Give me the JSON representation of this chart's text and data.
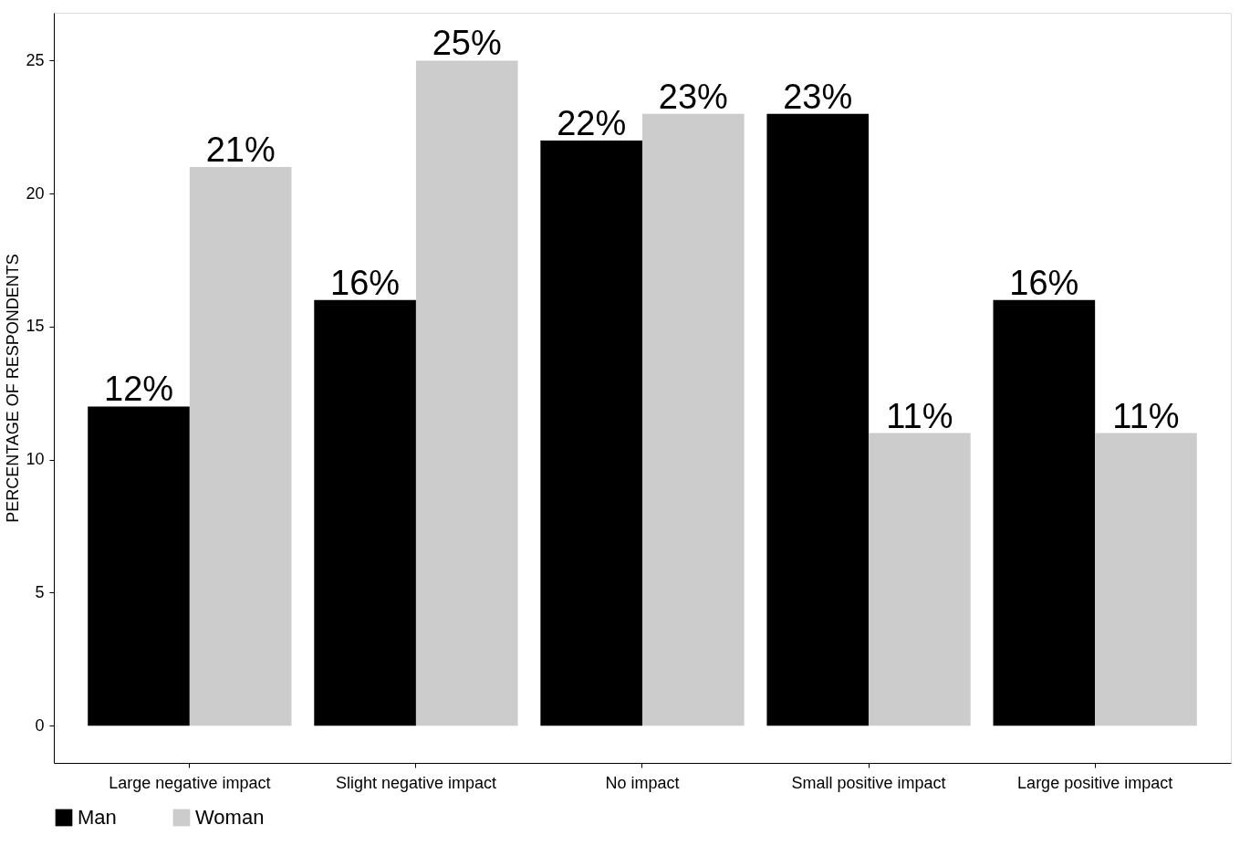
{
  "chart_data": {
    "type": "bar",
    "ylabel": "PERCENTAGE OF RESPONDENTS",
    "categories": [
      "Large negative impact",
      "Slight negative impact",
      "No impact",
      "Small positive impact",
      "Large positive impact"
    ],
    "series": [
      {
        "name": "Man",
        "color": "#000000",
        "values": [
          12,
          16,
          22,
          23,
          16
        ],
        "value_labels": [
          "12%",
          "16%",
          "22%",
          "23%",
          "16%"
        ]
      },
      {
        "name": "Woman",
        "color": "#cccccc",
        "values": [
          21,
          25,
          23,
          11,
          11
        ],
        "value_labels": [
          "21%",
          "25%",
          "23%",
          "11%",
          "11%"
        ]
      }
    ],
    "ylim": [
      -1.4,
      26.8
    ],
    "yticks": [
      0,
      5,
      10,
      15,
      20,
      25
    ],
    "grid": false,
    "legend": "bottom"
  }
}
